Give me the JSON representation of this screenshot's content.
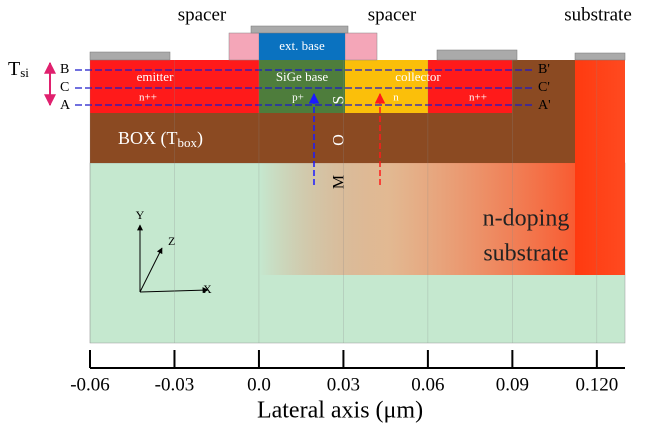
{
  "header": {
    "spacer_left": "spacer",
    "spacer_right": "spacer",
    "substrate": "substrate"
  },
  "tsi": {
    "main": "T",
    "sub": "si"
  },
  "cut_lines": {
    "left": [
      "B",
      "C",
      "A"
    ],
    "right": [
      "B'",
      "C'",
      "A'"
    ]
  },
  "regions": {
    "ext_base": "ext. base",
    "emitter": "emitter",
    "emitter_doping": "n++",
    "base": "SiGe base",
    "base_doping": "p+",
    "collector": "collector",
    "collector_doping": "n",
    "collector_contact_doping": "n++",
    "box": {
      "main": "BOX (T",
      "sub": "box",
      "close": ")"
    },
    "substrate_lines": [
      "n-doping",
      "substrate"
    ]
  },
  "mos": [
    "S",
    "O",
    "M"
  ],
  "coords": {
    "y": "Y",
    "z": "Z",
    "x": "X"
  },
  "axis": {
    "label": "Lateral axis (μm)",
    "lim": [
      -0.06,
      0.13
    ],
    "ticks": [
      -0.06,
      -0.03,
      {
        "value": 0,
        "label": "0.0"
      },
      0.03,
      0.06,
      0.09,
      {
        "value": 0.12,
        "label": "0.120"
      }
    ]
  }
}
